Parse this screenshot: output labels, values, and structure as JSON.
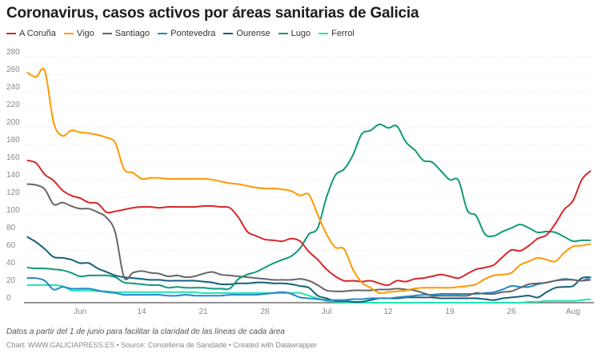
{
  "title": "Coronavirus, casos activos por áreas sanitarias de Galicia",
  "notes": "Datos a partir del 1 de junio para facilitar la claridad de las líneas de cada área",
  "byline": "Chart: WWW.GALICIAPRESS.ES • Source: Consellería de Sanidade • Created with Datawrapper",
  "chart_data": {
    "type": "line",
    "title": "Coronavirus, casos activos por áreas sanitarias de Galicia",
    "xlabel": "",
    "ylabel": "",
    "ylim": [
      0,
      280
    ],
    "yticks": [
      "0",
      "20",
      "40",
      "60",
      "80",
      "100",
      "120",
      "140",
      "160",
      "180",
      "200",
      "220",
      "240",
      "260",
      "280"
    ],
    "xticks": [
      {
        "label": "Jun",
        "date": "Jun 7"
      },
      {
        "label": "14",
        "date": "Jun 14"
      },
      {
        "label": "21",
        "date": "Jun 21"
      },
      {
        "label": "28",
        "date": "Jun 28"
      },
      {
        "label": "Jul",
        "date": "Jul 5"
      },
      {
        "label": "12",
        "date": "Jul 12"
      },
      {
        "label": "19",
        "date": "Jul 19"
      },
      {
        "label": "26",
        "date": "Jul 26"
      },
      {
        "label": "Aug",
        "date": "Aug 2"
      }
    ],
    "grid": true,
    "legend": "top-left",
    "x": [
      "Jun 1",
      "Jun 2",
      "Jun 3",
      "Jun 4",
      "Jun 5",
      "Jun 6",
      "Jun 7",
      "Jun 8",
      "Jun 9",
      "Jun 10",
      "Jun 11",
      "Jun 12",
      "Jun 13",
      "Jun 14",
      "Jun 15",
      "Jun 16",
      "Jun 17",
      "Jun 18",
      "Jun 19",
      "Jun 20",
      "Jun 21",
      "Jun 22",
      "Jun 23",
      "Jun 24",
      "Jun 25",
      "Jun 26",
      "Jun 27",
      "Jun 28",
      "Jun 29",
      "Jun 30",
      "Jul 1",
      "Jul 2",
      "Jul 3",
      "Jul 4",
      "Jul 5",
      "Jul 6",
      "Jul 7",
      "Jul 8",
      "Jul 9",
      "Jul 10",
      "Jul 11",
      "Jul 12",
      "Jul 13",
      "Jul 14",
      "Jul 15",
      "Jul 16",
      "Jul 17",
      "Jul 18",
      "Jul 19",
      "Jul 20",
      "Jul 21",
      "Jul 22",
      "Jul 23",
      "Jul 24",
      "Jul 25",
      "Jul 26",
      "Jul 27",
      "Jul 28",
      "Jul 29",
      "Jul 30",
      "Jul 31",
      "Aug 1",
      "Aug 2",
      "Aug 3",
      "Aug 4"
    ],
    "series": [
      {
        "name": "A Coruña",
        "color": "#d62728",
        "values": [
          162,
          159,
          146,
          139,
          128,
          122,
          119,
          114,
          113,
          103,
          104,
          106,
          108,
          109,
          109,
          108,
          109,
          109,
          109,
          109,
          110,
          110,
          109,
          108,
          97,
          81,
          76,
          72,
          71,
          70,
          73,
          70,
          58,
          49,
          38,
          30,
          25,
          25,
          24,
          25,
          22,
          20,
          25,
          24,
          27,
          28,
          30,
          32,
          30,
          28,
          33,
          38,
          40,
          43,
          52,
          60,
          59,
          65,
          73,
          77,
          90,
          106,
          116,
          140,
          150
        ]
      },
      {
        "name": "Vigo",
        "color": "#ff9800",
        "values": [
          262,
          257,
          264,
          205,
          190,
          196,
          194,
          193,
          191,
          188,
          182,
          152,
          148,
          141,
          142,
          142,
          141,
          141,
          141,
          141,
          141,
          140,
          138,
          136,
          135,
          133,
          131,
          130,
          130,
          129,
          127,
          122,
          123,
          100,
          78,
          63,
          61,
          38,
          23,
          17,
          11,
          12,
          13,
          14,
          16,
          17,
          17,
          17,
          17,
          18,
          19,
          21,
          27,
          31,
          32,
          34,
          43,
          47,
          51,
          49,
          47,
          57,
          64,
          65,
          67
        ]
      },
      {
        "name": "Santiago",
        "color": "#666666",
        "values": [
          135,
          134,
          129,
          112,
          114,
          110,
          107,
          107,
          103,
          97,
          80,
          29,
          34,
          36,
          34,
          33,
          30,
          31,
          29,
          30,
          33,
          35,
          32,
          31,
          30,
          29,
          28,
          27,
          26,
          26,
          26,
          27,
          25,
          20,
          14,
          13,
          13,
          14,
          14,
          14,
          15,
          15,
          16,
          15,
          14,
          11,
          8,
          8,
          8,
          8,
          8,
          11,
          10,
          10,
          12,
          13,
          17,
          21,
          22,
          23,
          25,
          26,
          26,
          25,
          26
        ]
      },
      {
        "name": "Pontevedra",
        "color": "#2489c5",
        "values": [
          28,
          28,
          25,
          15,
          18,
          16,
          16,
          16,
          14,
          12,
          11,
          9,
          9,
          9,
          9,
          9,
          8,
          8,
          9,
          8,
          8,
          8,
          8,
          9,
          9,
          9,
          9,
          10,
          11,
          12,
          10,
          6,
          5,
          4,
          3,
          3,
          3,
          4,
          4,
          5,
          5,
          5,
          6,
          7,
          8,
          9,
          9,
          10,
          10,
          10,
          10,
          10,
          11,
          12,
          15,
          19,
          18,
          18,
          21,
          23,
          25,
          27,
          26,
          25,
          29
        ]
      },
      {
        "name": "Ourense",
        "color": "#15607a",
        "values": [
          75,
          69,
          61,
          52,
          51,
          49,
          45,
          45,
          39,
          35,
          31,
          29,
          28,
          27,
          26,
          26,
          25,
          25,
          25,
          25,
          24,
          23,
          21,
          21,
          22,
          22,
          23,
          23,
          22,
          22,
          21,
          19,
          17,
          8,
          5,
          2,
          2,
          1,
          1,
          3,
          5,
          5,
          5,
          6,
          6,
          6,
          6,
          5,
          5,
          5,
          5,
          5,
          4,
          3,
          5,
          6,
          7,
          8,
          6,
          12,
          17,
          18,
          19,
          28,
          29
        ]
      },
      {
        "name": "Lugo",
        "color": "#0f9a78",
        "values": [
          40,
          39,
          39,
          38,
          37,
          34,
          30,
          31,
          31,
          31,
          29,
          23,
          22,
          21,
          20,
          20,
          17,
          18,
          17,
          17,
          17,
          16,
          16,
          16,
          27,
          32,
          35,
          40,
          45,
          49,
          53,
          62,
          78,
          85,
          120,
          145,
          152,
          168,
          192,
          196,
          203,
          199,
          201,
          183,
          174,
          162,
          160,
          150,
          140,
          139,
          105,
          99,
          78,
          76,
          81,
          85,
          89,
          85,
          80,
          81,
          80,
          75,
          70,
          71,
          71
        ]
      },
      {
        "name": "Ferrol",
        "color": "#1fe5b4",
        "values": [
          20,
          20,
          20,
          20,
          19,
          14,
          14,
          14,
          13,
          13,
          12,
          12,
          12,
          12,
          12,
          12,
          12,
          12,
          12,
          12,
          11,
          11,
          11,
          11,
          11,
          11,
          11,
          11,
          11,
          11,
          11,
          11,
          8,
          5,
          2,
          1,
          1,
          0,
          0,
          0,
          0,
          0,
          0,
          0,
          0,
          0,
          0,
          0,
          0,
          0,
          0,
          0,
          0,
          0,
          0,
          0,
          0,
          1,
          1,
          2,
          2,
          2,
          2,
          3,
          4
        ]
      }
    ]
  }
}
